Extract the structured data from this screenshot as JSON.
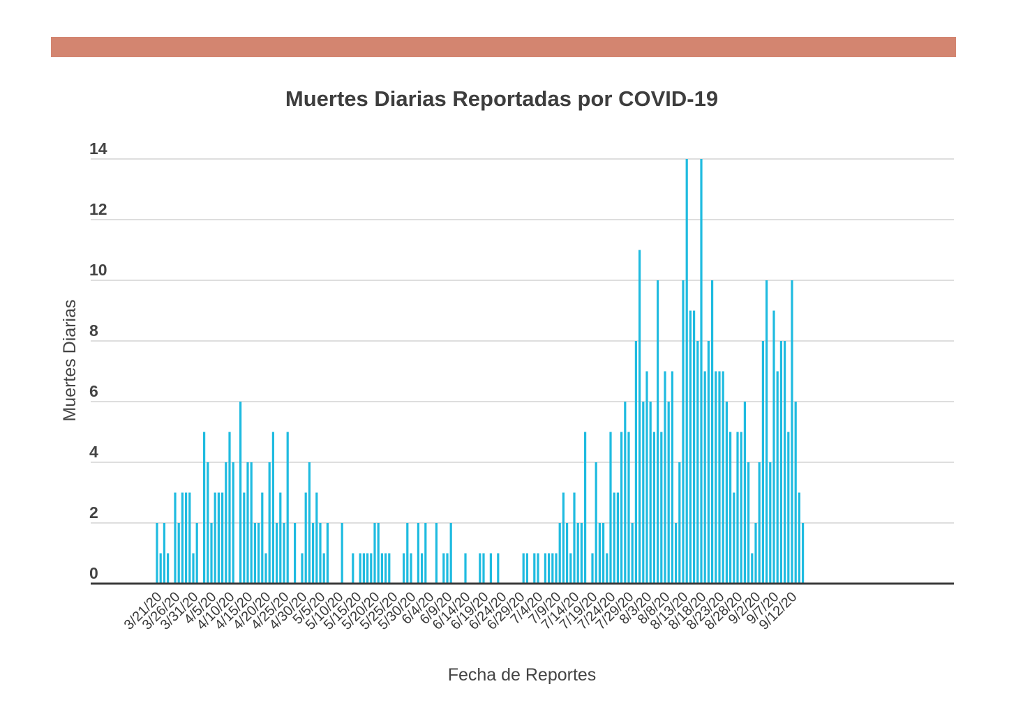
{
  "chart_data": {
    "type": "bar",
    "title": "Muertes Diarias Reportadas por COVID-19",
    "xlabel": "Fecha de Reportes",
    "ylabel": "Muertes Diarias",
    "ylim": [
      0,
      14
    ],
    "yticks": [
      0,
      2,
      4,
      6,
      8,
      10,
      12,
      14
    ],
    "grid": true,
    "bar_color": "#1fbbe0",
    "start_date": "3/21/20",
    "x_tick_labels": [
      "3/21/20",
      "3/26/20",
      "3/31/20",
      "4/5/20",
      "4/10/20",
      "4/15/20",
      "4/20/20",
      "4/25/20",
      "4/30/20",
      "5/5/20",
      "5/10/20",
      "5/15/20",
      "5/20/20",
      "5/25/20",
      "5/30/20",
      "6/4/20",
      "6/9/20",
      "6/14/20",
      "6/19/20",
      "6/24/20",
      "6/29/20",
      "7/4/20",
      "7/9/20",
      "7/14/20",
      "7/19/20",
      "7/24/20",
      "7/29/20",
      "8/3/20",
      "8/8/20",
      "8/13/20",
      "8/18/20",
      "8/23/20",
      "8/28/20",
      "9/2/20",
      "9/7/20",
      "9/12/20"
    ],
    "values": [
      2,
      1,
      2,
      1,
      0,
      3,
      2,
      3,
      3,
      3,
      1,
      2,
      0,
      5,
      4,
      2,
      3,
      3,
      3,
      4,
      5,
      4,
      0,
      6,
      3,
      4,
      4,
      2,
      2,
      3,
      1,
      4,
      5,
      2,
      3,
      2,
      5,
      0,
      2,
      0,
      1,
      3,
      4,
      2,
      3,
      2,
      1,
      2,
      0,
      0,
      0,
      2,
      0,
      0,
      1,
      0,
      1,
      1,
      1,
      1,
      2,
      2,
      1,
      1,
      1,
      0,
      0,
      0,
      1,
      2,
      1,
      0,
      2,
      1,
      2,
      0,
      0,
      2,
      0,
      1,
      1,
      2,
      0,
      0,
      0,
      1,
      0,
      0,
      0,
      1,
      1,
      0,
      1,
      0,
      1,
      0,
      0,
      0,
      0,
      0,
      0,
      1,
      1,
      0,
      1,
      1,
      0,
      1,
      1,
      1,
      1,
      2,
      3,
      2,
      1,
      3,
      2,
      2,
      5,
      0,
      1,
      4,
      2,
      2,
      1,
      5,
      3,
      3,
      5,
      6,
      5,
      2,
      8,
      11,
      6,
      7,
      6,
      5,
      10,
      5,
      7,
      6,
      7,
      2,
      4,
      10,
      14,
      9,
      9,
      8,
      14,
      7,
      8,
      10,
      7,
      7,
      7,
      6,
      5,
      3,
      5,
      5,
      6,
      4,
      1,
      2,
      4,
      8,
      10,
      4,
      9,
      7,
      8,
      8,
      5,
      10,
      6,
      3,
      2
    ]
  },
  "colors": {
    "band": "#d38570",
    "bars": "#1fbbe0",
    "grid": "#d4d4d4",
    "axis": "#3a3a3a"
  }
}
